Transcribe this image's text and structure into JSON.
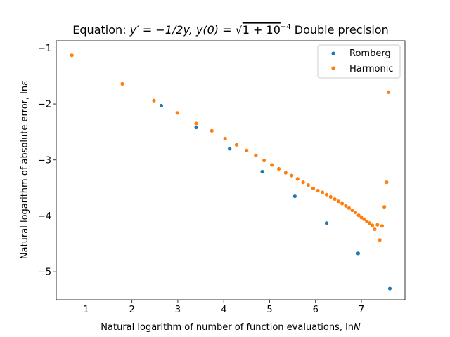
{
  "chart_data": {
    "type": "scatter",
    "title": "Equation: y′ = −1/2y, y(0) = √(1 + 10⁻⁴) Double precision",
    "title_parts": {
      "prefix": "Equation: ",
      "eq1": "y′ = −1/2y, ",
      "eq2": "y(0) = ",
      "sqrt_arg": "1 + 10",
      "sqrt_exp": "−4",
      "suffix": " Double precision"
    },
    "xlabel": "Natural logarithm of number of function evaluations, lnN",
    "xlabel_parts": {
      "text": "Natural logarithm of number of function evaluations, ln",
      "var": "N"
    },
    "ylabel": "Natural logarithm of absolute error, lnε",
    "ylabel_parts": {
      "text": "Natural logarithm of absolute error, ln",
      "var": "ε"
    },
    "xlim": [
      0.35,
      7.95
    ],
    "ylim": [
      -5.5,
      -0.87
    ],
    "xticks": [
      1,
      2,
      3,
      4,
      5,
      6,
      7
    ],
    "yticks": [
      -1,
      -2,
      -3,
      -4,
      -5
    ],
    "xtick_labels": [
      "1",
      "2",
      "3",
      "4",
      "5",
      "6",
      "7"
    ],
    "ytick_labels": [
      "−1",
      "−2",
      "−3",
      "−4",
      "−5"
    ],
    "legend_position": "top-right",
    "grid": false,
    "series": [
      {
        "name": "Romberg",
        "color": "#1f77b4",
        "x": [
          2.64,
          3.4,
          4.13,
          4.84,
          5.55,
          6.24,
          6.93,
          7.62
        ],
        "y": [
          -2.03,
          -2.42,
          -2.8,
          -3.21,
          -3.65,
          -4.13,
          -4.67,
          -5.3
        ]
      },
      {
        "name": "Harmonic",
        "color": "#ff7f0e",
        "x": [
          0.69,
          1.79,
          2.48,
          2.99,
          3.4,
          3.74,
          4.03,
          4.28,
          4.5,
          4.7,
          4.88,
          5.05,
          5.2,
          5.35,
          5.48,
          5.61,
          5.73,
          5.84,
          5.95,
          6.05,
          6.15,
          6.24,
          6.33,
          6.42,
          6.5,
          6.58,
          6.66,
          6.73,
          6.8,
          6.87,
          6.94,
          7.0,
          7.06,
          7.12,
          7.18,
          7.24,
          7.29,
          7.35,
          7.4,
          7.45,
          7.5,
          7.55,
          7.59
        ],
        "y": [
          -1.13,
          -1.64,
          -1.94,
          -2.16,
          -2.35,
          -2.48,
          -2.62,
          -2.73,
          -2.83,
          -2.92,
          -3.01,
          -3.09,
          -3.16,
          -3.23,
          -3.28,
          -3.34,
          -3.4,
          -3.45,
          -3.51,
          -3.55,
          -3.58,
          -3.62,
          -3.66,
          -3.7,
          -3.74,
          -3.78,
          -3.82,
          -3.86,
          -3.9,
          -3.94,
          -3.99,
          -4.03,
          -4.06,
          -4.1,
          -4.13,
          -4.17,
          -4.24,
          -4.16,
          -4.43,
          -4.18,
          -3.84,
          -3.4,
          -1.79
        ]
      }
    ]
  }
}
